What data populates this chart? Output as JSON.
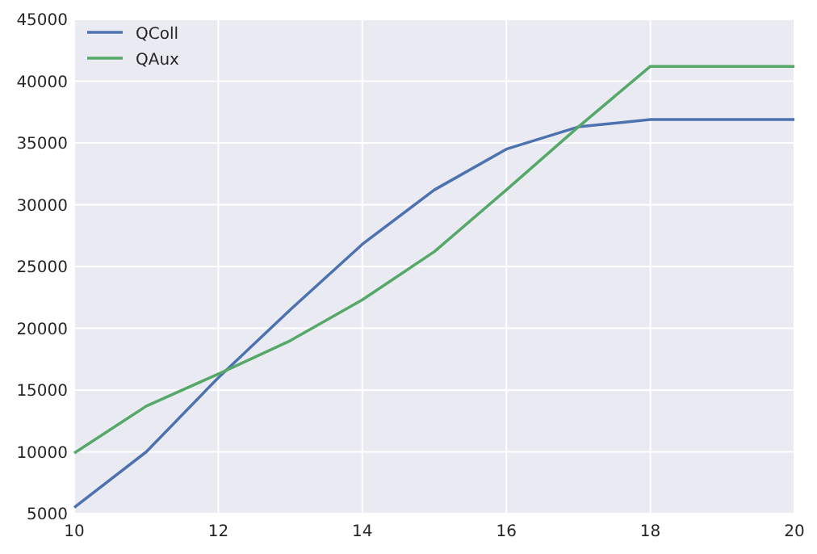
{
  "chart_data": {
    "type": "line",
    "x": [
      10,
      11,
      12,
      13,
      14,
      15,
      16,
      17,
      18,
      19,
      20
    ],
    "series": [
      {
        "name": "QColl",
        "color": "#4c72b0",
        "values": [
          5500,
          10000,
          16000,
          21500,
          26800,
          31200,
          34500,
          36300,
          36900,
          36900,
          36900
        ]
      },
      {
        "name": "QAux",
        "color": "#55a868",
        "values": [
          9900,
          13700,
          16300,
          19000,
          22300,
          26200,
          31200,
          36300,
          41200,
          41200,
          41200
        ]
      }
    ],
    "xlim": [
      10,
      20
    ],
    "xticks": [
      10,
      12,
      14,
      16,
      18,
      20
    ],
    "ylim": [
      5000,
      45000
    ],
    "yticks": [
      5000,
      10000,
      15000,
      20000,
      25000,
      30000,
      35000,
      40000,
      45000
    ],
    "grid": true,
    "legend": "top left",
    "marker": "none",
    "line_style": "solid"
  }
}
